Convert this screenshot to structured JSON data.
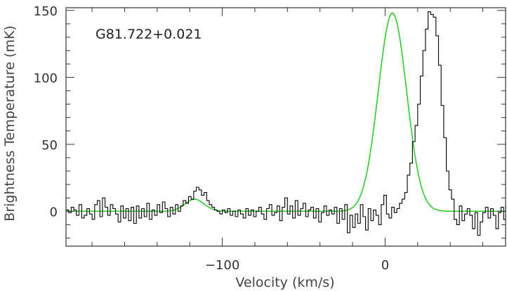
{
  "chart_data": {
    "type": "line",
    "title": "",
    "xlabel": "Velocity (km/s)",
    "ylabel": "Brightness Temperature (mK)",
    "annotation": "G81.722+0.021",
    "xlim": [
      -196,
      74
    ],
    "ylim": [
      -26,
      152
    ],
    "x_ticks": [
      -100,
      0
    ],
    "x_tick_labels": [
      "−100",
      "0"
    ],
    "y_ticks": [
      0,
      50,
      100,
      150
    ],
    "y_tick_labels": [
      "0",
      "50",
      "100",
      "150"
    ],
    "grid": false,
    "colors": {
      "observed": "#000000",
      "fit": "#22cc22",
      "axes": "#333333"
    },
    "series": [
      {
        "style": "step",
        "x_start": -196,
        "x_step": 1.6,
        "values": [
          1,
          -1,
          3,
          1,
          -3,
          5,
          -5,
          -3,
          2,
          -2,
          -6,
          5,
          8,
          -4,
          10,
          3,
          -3,
          5,
          2,
          -2,
          -8,
          4,
          -5,
          2,
          -7,
          3,
          -9,
          4,
          -5,
          2,
          -4,
          6,
          -6,
          1,
          -3,
          5,
          -1,
          7,
          2,
          -4,
          3,
          -2,
          5,
          0,
          4,
          8,
          6,
          11,
          9,
          15,
          18,
          16,
          12,
          14,
          8,
          5,
          3,
          1,
          0,
          -2,
          1,
          -1,
          2,
          -3,
          0,
          -4,
          1,
          -2,
          -5,
          2,
          -3,
          1,
          -4,
          0,
          3,
          -2,
          -6,
          2,
          5,
          -3,
          -1,
          4,
          -7,
          3,
          10,
          -2,
          4,
          -5,
          8,
          -3,
          2,
          6,
          -4,
          1,
          3,
          -5,
          2,
          -8,
          -1,
          4,
          -3,
          1,
          -2,
          3,
          -9,
          2,
          -6,
          5,
          -16,
          -3,
          -12,
          -2,
          -9,
          5,
          -4,
          -14,
          2,
          -7,
          1,
          -3,
          -10,
          5,
          12,
          -2,
          -5,
          3,
          -1,
          2,
          6,
          9,
          14,
          27,
          36,
          52,
          64,
          80,
          101,
          120,
          136,
          149,
          147,
          145,
          131,
          109,
          79,
          55,
          30,
          16,
          9,
          -6,
          -10,
          4,
          -7,
          -2,
          2,
          -3,
          -13,
          -1,
          -18,
          -8,
          -1,
          3,
          -5,
          2,
          -3,
          -13,
          -1,
          3,
          -6,
          5,
          1,
          -4,
          2,
          -7,
          4,
          3
        ]
      },
      {
        "style": "gaussian-fit",
        "components": [
          {
            "amplitude": 148,
            "center": 4.5,
            "fwhm": 20.5
          },
          {
            "amplitude": 9,
            "center": -117,
            "fwhm": 14
          }
        ],
        "baseline": 0
      }
    ]
  }
}
